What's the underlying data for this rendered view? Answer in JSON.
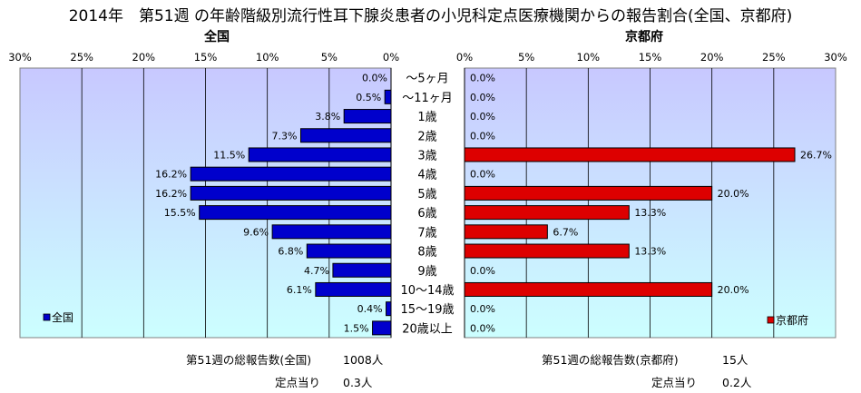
{
  "title": "2014年　第51週 の年齢階級別流行性耳下腺炎患者の小児科定点医療機関からの報告割合(全国、京都府)",
  "colors": {
    "national": "#0000cc",
    "kyoto": "#dd0000",
    "plot_top": "#c8c8ff",
    "plot_bottom": "#ccffff"
  },
  "chart_data": [
    {
      "type": "bar",
      "orientation": "horizontal",
      "title": "全国",
      "categories": [
        "〜5ヶ月",
        "〜11ヶ月",
        "1歳",
        "2歳",
        "3歳",
        "4歳",
        "5歳",
        "6歳",
        "7歳",
        "8歳",
        "9歳",
        "10〜14歳",
        "15〜19歳",
        "20歳以上"
      ],
      "series": [
        {
          "name": "全国",
          "values": [
            0.0,
            0.5,
            3.8,
            7.3,
            11.5,
            16.2,
            16.2,
            15.5,
            9.6,
            6.8,
            4.7,
            6.1,
            0.4,
            1.5
          ]
        }
      ],
      "value_labels": [
        "0.0%",
        "0.5%",
        "3.8%",
        "7.3%",
        "11.5%",
        "16.2%",
        "16.2%",
        "15.5%",
        "9.6%",
        "6.8%",
        "4.7%",
        "6.1%",
        "0.4%",
        "1.5%"
      ],
      "xlim": [
        30,
        0
      ],
      "x_ticks": [
        "30%",
        "25%",
        "20%",
        "15%",
        "10%",
        "5%",
        "0%"
      ],
      "legend": "bottom-left",
      "grid": true
    },
    {
      "type": "bar",
      "orientation": "horizontal",
      "title": "京都府",
      "categories": [
        "〜5ヶ月",
        "〜11ヶ月",
        "1歳",
        "2歳",
        "3歳",
        "4歳",
        "5歳",
        "6歳",
        "7歳",
        "8歳",
        "9歳",
        "10〜14歳",
        "15〜19歳",
        "20歳以上"
      ],
      "series": [
        {
          "name": "京都府",
          "values": [
            0.0,
            0.0,
            0.0,
            0.0,
            26.7,
            0.0,
            20.0,
            13.3,
            6.7,
            13.3,
            0.0,
            20.0,
            0.0,
            0.0
          ]
        }
      ],
      "value_labels": [
        "0.0%",
        "0.0%",
        "0.0%",
        "0.0%",
        "26.7%",
        "0.0%",
        "20.0%",
        "13.3%",
        "6.7%",
        "13.3%",
        "0.0%",
        "20.0%",
        "0.0%",
        "0.0%"
      ],
      "xlim": [
        0,
        30
      ],
      "x_ticks": [
        "0%",
        "5%",
        "10%",
        "15%",
        "20%",
        "25%",
        "30%"
      ],
      "legend": "bottom-right",
      "grid": true
    }
  ],
  "footer": {
    "national_total_label": "第51週の総報告数(全国)",
    "national_total_value": "1008人",
    "national_per_label": "定点当り",
    "national_per_value": "0.3人",
    "kyoto_total_label": "第51週の総報告数(京都府)",
    "kyoto_total_value": "15人",
    "kyoto_per_label": "定点当り",
    "kyoto_per_value": "0.2人"
  }
}
